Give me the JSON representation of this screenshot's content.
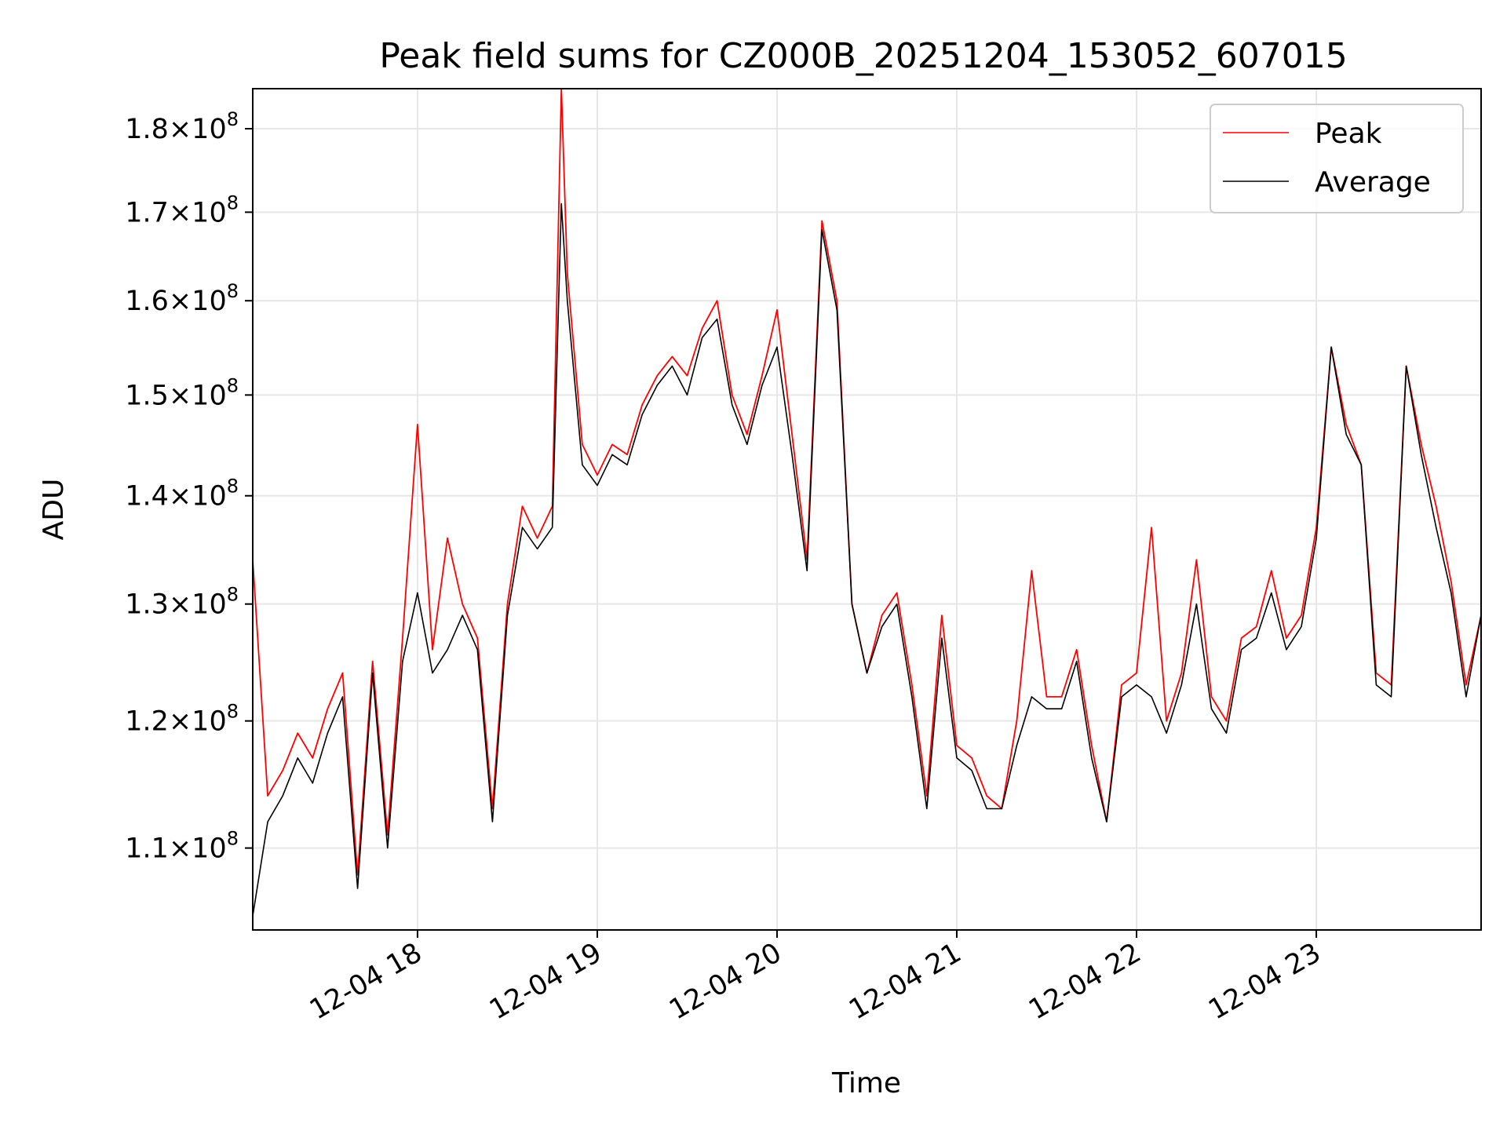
{
  "chart_data": {
    "type": "line",
    "title": "Peak field sums for CZ000B_20251204_153052_607015",
    "xlabel": "Time",
    "ylabel": "ADU",
    "x_tick_labels": [
      "12-04 18",
      "12-04 19",
      "12-04 20",
      "12-04 21",
      "12-04 22",
      "12-04 23"
    ],
    "x_ticks": [
      "2025-12-04T18:00",
      "2025-12-04T19:00",
      "2025-12-04T20:00",
      "2025-12-04T21:00",
      "2025-12-04T22:00",
      "2025-12-04T23:00"
    ],
    "y_tick_labels": [
      {
        "value": 110000000,
        "mantissa": "1.1",
        "exp": "8"
      },
      {
        "value": 120000000,
        "mantissa": "1.2",
        "exp": "8"
      },
      {
        "value": 130000000,
        "mantissa": "1.3",
        "exp": "8"
      },
      {
        "value": 140000000,
        "mantissa": "1.4",
        "exp": "8"
      },
      {
        "value": 150000000,
        "mantissa": "1.5",
        "exp": "8"
      },
      {
        "value": 160000000,
        "mantissa": "1.6",
        "exp": "8"
      },
      {
        "value": 170000000,
        "mantissa": "1.7",
        "exp": "8"
      },
      {
        "value": 180000000,
        "mantissa": "1.8",
        "exp": "8"
      }
    ],
    "y_scale": "log",
    "xlim": [
      "2025-12-04T17:05",
      "2025-12-04T23:55"
    ],
    "ylim": [
      104000000,
      185000000
    ],
    "grid": true,
    "legend": "top-right",
    "series": [
      {
        "name": "Peak",
        "color": "#ff0000",
        "x": [
          "2025-12-04T17:05",
          "2025-12-04T17:10",
          "2025-12-04T17:15",
          "2025-12-04T17:20",
          "2025-12-04T17:25",
          "2025-12-04T17:30",
          "2025-12-04T17:35",
          "2025-12-04T17:40",
          "2025-12-04T17:45",
          "2025-12-04T17:50",
          "2025-12-04T17:55",
          "2025-12-04T18:00",
          "2025-12-04T18:05",
          "2025-12-04T18:10",
          "2025-12-04T18:15",
          "2025-12-04T18:20",
          "2025-12-04T18:25",
          "2025-12-04T18:30",
          "2025-12-04T18:35",
          "2025-12-04T18:40",
          "2025-12-04T18:45",
          "2025-12-04T18:48",
          "2025-12-04T18:50",
          "2025-12-04T18:55",
          "2025-12-04T19:00",
          "2025-12-04T19:05",
          "2025-12-04T19:10",
          "2025-12-04T19:15",
          "2025-12-04T19:20",
          "2025-12-04T19:25",
          "2025-12-04T19:30",
          "2025-12-04T19:35",
          "2025-12-04T19:40",
          "2025-12-04T19:45",
          "2025-12-04T19:50",
          "2025-12-04T19:55",
          "2025-12-04T20:00",
          "2025-12-04T20:05",
          "2025-12-04T20:10",
          "2025-12-04T20:15",
          "2025-12-04T20:20",
          "2025-12-04T20:25",
          "2025-12-04T20:30",
          "2025-12-04T20:35",
          "2025-12-04T20:40",
          "2025-12-04T20:45",
          "2025-12-04T20:50",
          "2025-12-04T20:55",
          "2025-12-04T21:00",
          "2025-12-04T21:05",
          "2025-12-04T21:10",
          "2025-12-04T21:15",
          "2025-12-04T21:20",
          "2025-12-04T21:25",
          "2025-12-04T21:30",
          "2025-12-04T21:35",
          "2025-12-04T21:40",
          "2025-12-04T21:45",
          "2025-12-04T21:50",
          "2025-12-04T21:55",
          "2025-12-04T22:00",
          "2025-12-04T22:05",
          "2025-12-04T22:10",
          "2025-12-04T22:15",
          "2025-12-04T22:20",
          "2025-12-04T22:25",
          "2025-12-04T22:30",
          "2025-12-04T22:35",
          "2025-12-04T22:40",
          "2025-12-04T22:45",
          "2025-12-04T22:50",
          "2025-12-04T22:55",
          "2025-12-04T23:00",
          "2025-12-04T23:05",
          "2025-12-04T23:10",
          "2025-12-04T23:15",
          "2025-12-04T23:20",
          "2025-12-04T23:25",
          "2025-12-04T23:30",
          "2025-12-04T23:35",
          "2025-12-04T23:40",
          "2025-12-04T23:45",
          "2025-12-04T23:50",
          "2025-12-04T23:55"
        ],
        "values": [
          134000000,
          114000000,
          116000000,
          119000000,
          117000000,
          121000000,
          124000000,
          108000000,
          125000000,
          111000000,
          127000000,
          147000000,
          126000000,
          136000000,
          130000000,
          127000000,
          113000000,
          130000000,
          139000000,
          136000000,
          139000000,
          185000000,
          163000000,
          145000000,
          142000000,
          145000000,
          144000000,
          149000000,
          152000000,
          154000000,
          152000000,
          157000000,
          160000000,
          150000000,
          146000000,
          152000000,
          159000000,
          146000000,
          134000000,
          169000000,
          160000000,
          130000000,
          124000000,
          129000000,
          131000000,
          123000000,
          114000000,
          129000000,
          118000000,
          117000000,
          114000000,
          113000000,
          120000000,
          133000000,
          122000000,
          122000000,
          126000000,
          118000000,
          112000000,
          123000000,
          124000000,
          137000000,
          120000000,
          124000000,
          134000000,
          122000000,
          120000000,
          127000000,
          128000000,
          133000000,
          127000000,
          129000000,
          137000000,
          155000000,
          147000000,
          143000000,
          124000000,
          123000000,
          153000000,
          145000000,
          139000000,
          132000000,
          123000000,
          129000000
        ]
      },
      {
        "name": "Average",
        "color": "#000000",
        "x": [
          "2025-12-04T17:05",
          "2025-12-04T17:10",
          "2025-12-04T17:15",
          "2025-12-04T17:20",
          "2025-12-04T17:25",
          "2025-12-04T17:30",
          "2025-12-04T17:35",
          "2025-12-04T17:40",
          "2025-12-04T17:45",
          "2025-12-04T17:50",
          "2025-12-04T17:55",
          "2025-12-04T18:00",
          "2025-12-04T18:05",
          "2025-12-04T18:10",
          "2025-12-04T18:15",
          "2025-12-04T18:20",
          "2025-12-04T18:25",
          "2025-12-04T18:30",
          "2025-12-04T18:35",
          "2025-12-04T18:40",
          "2025-12-04T18:45",
          "2025-12-04T18:48",
          "2025-12-04T18:50",
          "2025-12-04T18:55",
          "2025-12-04T19:00",
          "2025-12-04T19:05",
          "2025-12-04T19:10",
          "2025-12-04T19:15",
          "2025-12-04T19:20",
          "2025-12-04T19:25",
          "2025-12-04T19:30",
          "2025-12-04T19:35",
          "2025-12-04T19:40",
          "2025-12-04T19:45",
          "2025-12-04T19:50",
          "2025-12-04T19:55",
          "2025-12-04T20:00",
          "2025-12-04T20:05",
          "2025-12-04T20:10",
          "2025-12-04T20:15",
          "2025-12-04T20:20",
          "2025-12-04T20:25",
          "2025-12-04T20:30",
          "2025-12-04T20:35",
          "2025-12-04T20:40",
          "2025-12-04T20:45",
          "2025-12-04T20:50",
          "2025-12-04T20:55",
          "2025-12-04T21:00",
          "2025-12-04T21:05",
          "2025-12-04T21:10",
          "2025-12-04T21:15",
          "2025-12-04T21:20",
          "2025-12-04T21:25",
          "2025-12-04T21:30",
          "2025-12-04T21:35",
          "2025-12-04T21:40",
          "2025-12-04T21:45",
          "2025-12-04T21:50",
          "2025-12-04T21:55",
          "2025-12-04T22:00",
          "2025-12-04T22:05",
          "2025-12-04T22:10",
          "2025-12-04T22:15",
          "2025-12-04T22:20",
          "2025-12-04T22:25",
          "2025-12-04T22:30",
          "2025-12-04T22:35",
          "2025-12-04T22:40",
          "2025-12-04T22:45",
          "2025-12-04T22:50",
          "2025-12-04T22:55",
          "2025-12-04T23:00",
          "2025-12-04T23:05",
          "2025-12-04T23:10",
          "2025-12-04T23:15",
          "2025-12-04T23:20",
          "2025-12-04T23:25",
          "2025-12-04T23:30",
          "2025-12-04T23:35",
          "2025-12-04T23:40",
          "2025-12-04T23:45",
          "2025-12-04T23:50",
          "2025-12-04T23:55"
        ],
        "values": [
          105000000,
          112000000,
          114000000,
          117000000,
          115000000,
          119000000,
          122000000,
          107000000,
          124000000,
          110000000,
          125000000,
          131000000,
          124000000,
          126000000,
          129000000,
          126000000,
          112000000,
          129000000,
          137000000,
          135000000,
          137000000,
          171000000,
          160000000,
          143000000,
          141000000,
          144000000,
          143000000,
          148000000,
          151000000,
          153000000,
          150000000,
          156000000,
          158000000,
          149000000,
          145000000,
          151000000,
          155000000,
          144000000,
          133000000,
          168000000,
          159000000,
          130000000,
          124000000,
          128000000,
          130000000,
          122000000,
          113000000,
          127000000,
          117000000,
          116000000,
          113000000,
          113000000,
          118000000,
          122000000,
          121000000,
          121000000,
          125000000,
          117000000,
          112000000,
          122000000,
          123000000,
          122000000,
          119000000,
          123000000,
          130000000,
          121000000,
          119000000,
          126000000,
          127000000,
          131000000,
          126000000,
          128000000,
          136000000,
          155000000,
          146000000,
          143000000,
          123000000,
          122000000,
          153000000,
          144000000,
          137000000,
          131000000,
          122000000,
          129000000
        ]
      }
    ]
  }
}
